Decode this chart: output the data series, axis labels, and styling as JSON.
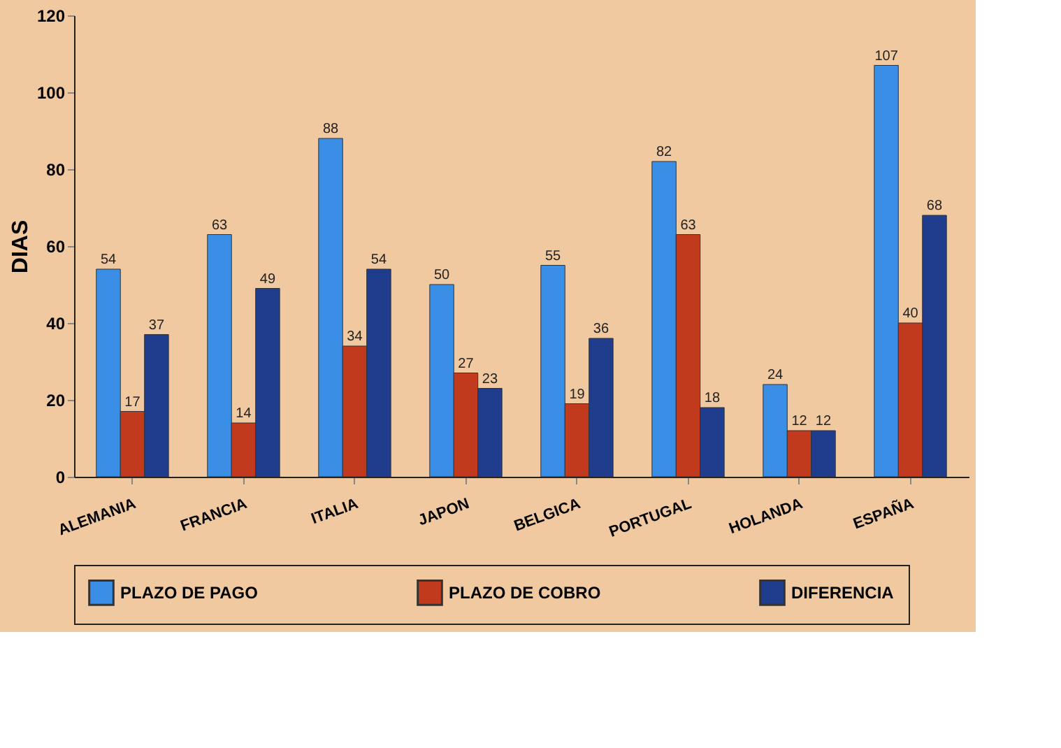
{
  "chart_data": {
    "type": "bar",
    "ylabel": "DIAS",
    "categories": [
      "ALEMANIA",
      "FRANCIA",
      "ITALIA",
      "JAPON",
      "BELGICA",
      "PORTUGAL",
      "HOLANDA",
      "ESPAÑA"
    ],
    "series": [
      {
        "name": "PLAZO DE PAGO",
        "color": "#3a8ee6",
        "values": [
          54,
          63,
          88,
          50,
          55,
          82,
          24,
          107
        ]
      },
      {
        "name": "PLAZO DE COBRO",
        "color": "#c23a1e",
        "values": [
          17,
          14,
          34,
          27,
          19,
          63,
          12,
          40
        ]
      },
      {
        "name": "DIFERENCIA",
        "color": "#1f3d8c",
        "values": [
          37,
          49,
          54,
          23,
          36,
          18,
          12,
          68
        ]
      }
    ],
    "ylim": [
      0,
      120
    ],
    "yticks": [
      0,
      20,
      40,
      60,
      80,
      100,
      120
    ],
    "grid": false,
    "legend": "bottom",
    "data_labels": true
  }
}
